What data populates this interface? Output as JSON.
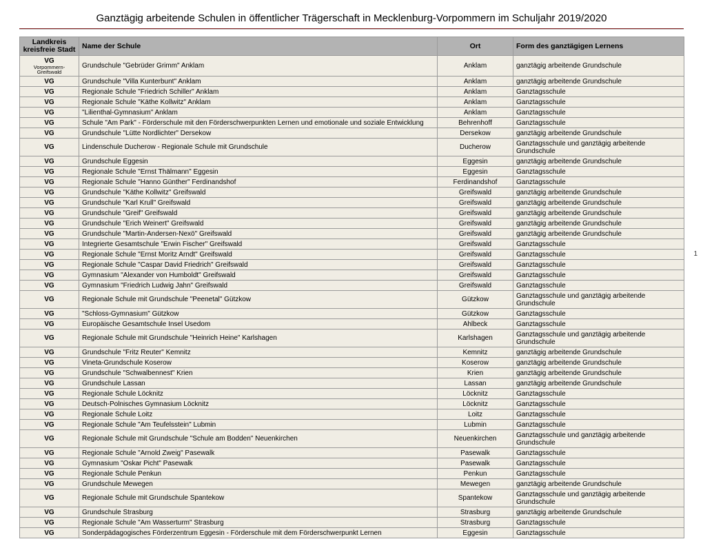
{
  "title": "Ganztägig arbeitende Schulen in öffentlicher Trägerschaft in Mecklenburg-Vorpommern im Schuljahr 2019/2020",
  "page_number": "1",
  "columns": {
    "lk": "Landkreis kreisfreie Stadt",
    "name": "Name der Schule",
    "ort": "Ort",
    "form": "Form des ganztägigen Lernens"
  },
  "rows": [
    {
      "lk": "VG",
      "lk_sub": "Vorpommern-Greifswald",
      "name": "Grundschule \"Gebrüder Grimm\" Anklam",
      "ort": "Anklam",
      "form": "ganztägig arbeitende Grundschule"
    },
    {
      "lk": "VG",
      "name": "Grundschule \"Villa Kunterbunt\" Anklam",
      "ort": "Anklam",
      "form": "ganztägig arbeitende Grundschule"
    },
    {
      "lk": "VG",
      "name": "Regionale Schule \"Friedrich Schiller\" Anklam",
      "ort": "Anklam",
      "form": "Ganztagsschule"
    },
    {
      "lk": "VG",
      "name": "Regionale Schule \"Käthe Kollwitz\" Anklam",
      "ort": "Anklam",
      "form": "Ganztagsschule"
    },
    {
      "lk": "VG",
      "name": "\"Lilienthal-Gymnasium\" Anklam",
      "ort": "Anklam",
      "form": "Ganztagsschule"
    },
    {
      "lk": "VG",
      "name": "Schule \"Am Park\" - Förderschule mit den Förderschwerpunkten Lernen und emotionale und soziale Entwicklung",
      "ort": "Behrenhoff",
      "form": "Ganztagsschule"
    },
    {
      "lk": "VG",
      "name": "Grundschule \"Lütte Nordlichter\" Dersekow",
      "ort": "Dersekow",
      "form": "ganztägig arbeitende Grundschule"
    },
    {
      "lk": "VG",
      "name": "Lindenschule Ducherow - Regionale Schule mit Grundschule",
      "ort": "Ducherow",
      "form": "Ganztagsschule und ganztägig arbeitende Grundschule"
    },
    {
      "lk": "VG",
      "name": "Grundschule Eggesin",
      "ort": "Eggesin",
      "form": "ganztägig arbeitende Grundschule"
    },
    {
      "lk": "VG",
      "name": "Regionale Schule \"Ernst Thälmann\" Eggesin",
      "ort": "Eggesin",
      "form": "Ganztagsschule"
    },
    {
      "lk": "VG",
      "name": "Regionale Schule \"Hanno Günther\" Ferdinandshof",
      "ort": "Ferdinandshof",
      "form": "Ganztagsschule"
    },
    {
      "lk": "VG",
      "name": "Grundschule \"Käthe Kollwitz\" Greifswald",
      "ort": "Greifswald",
      "form": "ganztägig arbeitende Grundschule"
    },
    {
      "lk": "VG",
      "name": "Grundschule  \"Karl Krull\" Greifswald",
      "ort": "Greifswald",
      "form": "ganztägig arbeitende Grundschule"
    },
    {
      "lk": "VG",
      "name": "Grundschule \"Greif\" Greifswald",
      "ort": "Greifswald",
      "form": "ganztägig arbeitende Grundschule"
    },
    {
      "lk": "VG",
      "name": "Grundschule \"Erich Weinert\" Greifswald",
      "ort": "Greifswald",
      "form": "ganztägig arbeitende Grundschule"
    },
    {
      "lk": "VG",
      "name": "Grundschule \"Martin-Andersen-Nexö\" Greifswald",
      "ort": "Greifswald",
      "form": "ganztägig arbeitende Grundschule"
    },
    {
      "lk": "VG",
      "name": "Integrierte Gesamtschule \"Erwin Fischer\" Greifswald",
      "ort": "Greifswald",
      "form": "Ganztagsschule"
    },
    {
      "lk": "VG",
      "name": "Regionale Schule \"Ernst Moritz Arndt\" Greifswald",
      "ort": "Greifswald",
      "form": "Ganztagsschule"
    },
    {
      "lk": "VG",
      "name": "Regionale Schule \"Caspar David Friedrich\" Greifswald",
      "ort": "Greifswald",
      "form": "Ganztagsschule"
    },
    {
      "lk": "VG",
      "name": "Gymnasium \"Alexander von Humboldt\" Greifswald",
      "ort": "Greifswald",
      "form": "Ganztagsschule"
    },
    {
      "lk": "VG",
      "name": "Gymnasium \"Friedrich Ludwig Jahn\" Greifswald",
      "ort": "Greifswald",
      "form": "Ganztagsschule"
    },
    {
      "lk": "VG",
      "name": "Regionale Schule mit Grundschule \"Peenetal\" Gützkow",
      "ort": "Gützkow",
      "form": "Ganztagsschule und ganztägig arbeitende Grundschule"
    },
    {
      "lk": "VG",
      "name": "\"Schloss-Gymnasium\" Gützkow",
      "ort": "Gützkow",
      "form": "Ganztagsschule"
    },
    {
      "lk": "VG",
      "name": "Europäische Gesamtschule Insel Usedom",
      "ort": "Ahlbeck",
      "form": "Ganztagsschule"
    },
    {
      "lk": "VG",
      "name": "Regionale Schule mit Grundschule \"Heinrich Heine\" Karlshagen",
      "ort": "Karlshagen",
      "form": "Ganztagsschule und ganztägig arbeitende Grundschule"
    },
    {
      "lk": "VG",
      "name": "Grundschule \"Fritz Reuter\" Kemnitz",
      "ort": "Kemnitz",
      "form": "ganztägig arbeitende Grundschule"
    },
    {
      "lk": "VG",
      "name": "Vineta-Grundschule Koserow",
      "ort": "Koserow",
      "form": "ganztägig arbeitende Grundschule"
    },
    {
      "lk": "VG",
      "name": "Grundschule \"Schwalbennest\" Krien",
      "ort": "Krien",
      "form": "ganztägig arbeitende Grundschule"
    },
    {
      "lk": "VG",
      "name": "Grundschule Lassan",
      "ort": "Lassan",
      "form": "ganztägig arbeitende Grundschule"
    },
    {
      "lk": "VG",
      "name": "Regionale Schule Löcknitz",
      "ort": "Löcknitz",
      "form": "Ganztagsschule"
    },
    {
      "lk": "VG",
      "name": "Deutsch-Polnisches Gymnasium Löcknitz",
      "ort": "Löcknitz",
      "form": "Ganztagsschule"
    },
    {
      "lk": "VG",
      "name": "Regionale Schule Loitz",
      "ort": "Loitz",
      "form": "Ganztagsschule"
    },
    {
      "lk": "VG",
      "name": "Regionale Schule \"Am Teufelsstein\" Lubmin",
      "ort": "Lubmin",
      "form": "Ganztagsschule"
    },
    {
      "lk": "VG",
      "name": "Regionale Schule mit Grundschule \"Schule am Bodden\" Neuenkirchen",
      "ort": "Neuenkirchen",
      "form": "Ganztagsschule und ganztägig arbeitende Grundschule"
    },
    {
      "lk": "VG",
      "name": "Regionale Schule \"Arnold Zweig\" Pasewalk",
      "ort": "Pasewalk",
      "form": "Ganztagsschule"
    },
    {
      "lk": "VG",
      "name": "Gymnasium \"Oskar Picht\" Pasewalk",
      "ort": "Pasewalk",
      "form": "Ganztagsschule"
    },
    {
      "lk": "VG",
      "name": "Regionale Schule Penkun",
      "ort": "Penkun",
      "form": "Ganztagsschule"
    },
    {
      "lk": "VG",
      "name": "Grundschule Mewegen",
      "ort": "Mewegen",
      "form": "ganztägig arbeitende Grundschule"
    },
    {
      "lk": "VG",
      "name": "Regionale Schule mit Grundschule Spantekow",
      "ort": "Spantekow",
      "form": "Ganztagsschule und ganztägig arbeitende Grundschule"
    },
    {
      "lk": "VG",
      "name": "Grundschule Strasburg",
      "ort": "Strasburg",
      "form": "ganztägig arbeitende Grundschule"
    },
    {
      "lk": "VG",
      "name": "Regionale Schule \"Am Wasserturm\" Strasburg",
      "ort": "Strasburg",
      "form": "Ganztagsschule"
    },
    {
      "lk": "VG",
      "name": "Sonderpädagogisches Förderzentrum Eggesin - Förderschule mit dem Förderschwerpunkt Lernen",
      "ort": "Eggesin",
      "form": "Ganztagsschule"
    }
  ]
}
